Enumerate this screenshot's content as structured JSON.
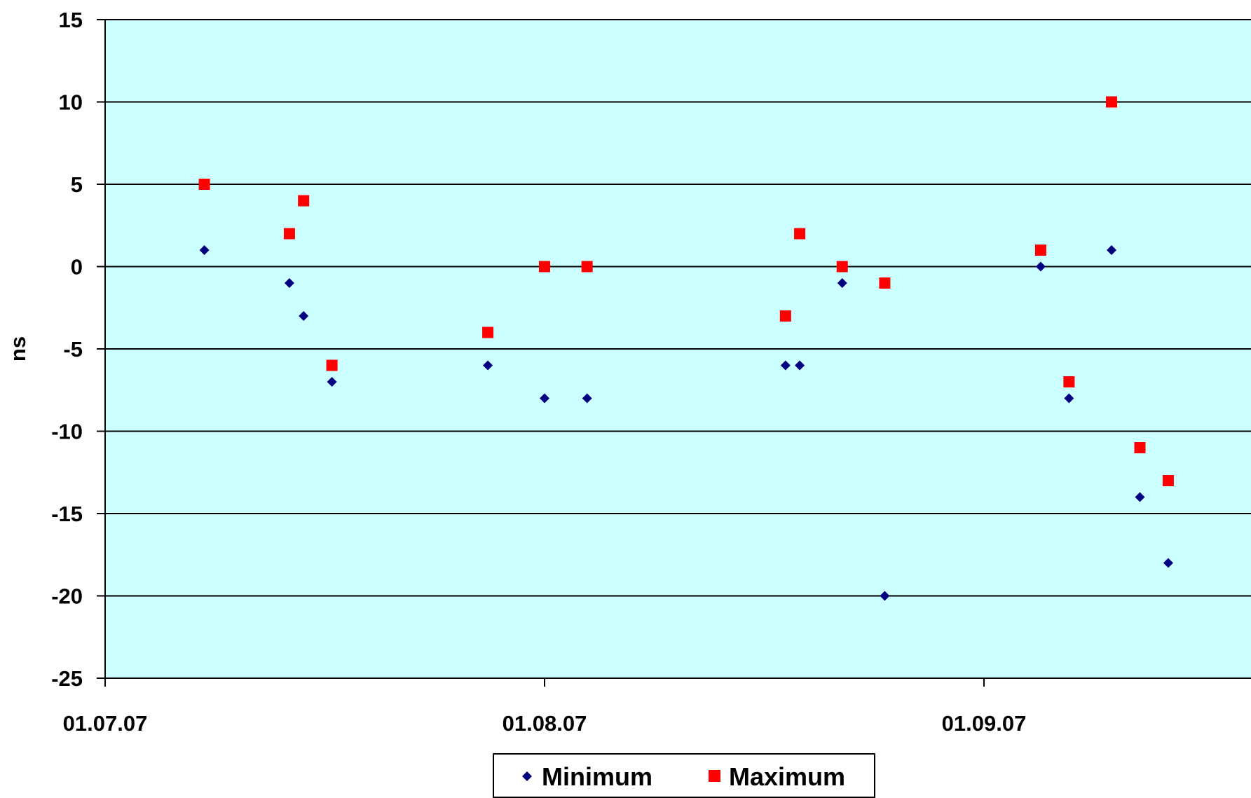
{
  "chart_data": {
    "type": "scatter",
    "title": "",
    "xlabel": "",
    "ylabel": "ns",
    "x_axis": {
      "type": "date",
      "range": [
        "2007-07-01",
        "2007-09-30"
      ],
      "tick_labels": [
        "01.07.07",
        "01.08.07",
        "01.09.07"
      ],
      "tick_dates": [
        "2007-07-01",
        "2007-08-01",
        "2007-09-01"
      ]
    },
    "y_axis": {
      "range": [
        -25,
        15
      ],
      "step": 5,
      "tick_labels": [
        "15",
        "10",
        "5",
        "0",
        "-5",
        "-10",
        "-15",
        "-20",
        "-25"
      ],
      "tick_values": [
        15,
        10,
        5,
        0,
        -5,
        -10,
        -15,
        -20,
        -25
      ]
    },
    "grid": true,
    "plot_background": "#ccffff",
    "legend": {
      "position": "bottom",
      "entries": [
        "Minimum",
        "Maximum"
      ]
    },
    "series": [
      {
        "name": "Minimum",
        "marker": "diamond",
        "color": "#000080",
        "points": [
          {
            "x": "2007-07-08",
            "y": 1
          },
          {
            "x": "2007-07-14",
            "y": -1
          },
          {
            "x": "2007-07-15",
            "y": -3
          },
          {
            "x": "2007-07-17",
            "y": -7
          },
          {
            "x": "2007-07-28",
            "y": -6
          },
          {
            "x": "2007-08-01",
            "y": -8
          },
          {
            "x": "2007-08-04",
            "y": -8
          },
          {
            "x": "2007-08-18",
            "y": -6
          },
          {
            "x": "2007-08-19",
            "y": -6
          },
          {
            "x": "2007-08-22",
            "y": -1
          },
          {
            "x": "2007-08-25",
            "y": -20
          },
          {
            "x": "2007-09-05",
            "y": 0
          },
          {
            "x": "2007-09-07",
            "y": -8
          },
          {
            "x": "2007-09-10",
            "y": 1
          },
          {
            "x": "2007-09-12",
            "y": -14
          },
          {
            "x": "2007-09-14",
            "y": -18
          }
        ]
      },
      {
        "name": "Maximum",
        "marker": "square",
        "color": "#ff0000",
        "points": [
          {
            "x": "2007-07-08",
            "y": 5
          },
          {
            "x": "2007-07-14",
            "y": 2
          },
          {
            "x": "2007-07-15",
            "y": 4
          },
          {
            "x": "2007-07-17",
            "y": -6
          },
          {
            "x": "2007-07-28",
            "y": -4
          },
          {
            "x": "2007-08-01",
            "y": 0
          },
          {
            "x": "2007-08-04",
            "y": 0
          },
          {
            "x": "2007-08-18",
            "y": -3
          },
          {
            "x": "2007-08-19",
            "y": 2
          },
          {
            "x": "2007-08-22",
            "y": 0
          },
          {
            "x": "2007-08-25",
            "y": -1
          },
          {
            "x": "2007-09-05",
            "y": 1
          },
          {
            "x": "2007-09-07",
            "y": -7
          },
          {
            "x": "2007-09-10",
            "y": 10
          },
          {
            "x": "2007-09-12",
            "y": -11
          },
          {
            "x": "2007-09-14",
            "y": -13
          }
        ]
      }
    ]
  }
}
